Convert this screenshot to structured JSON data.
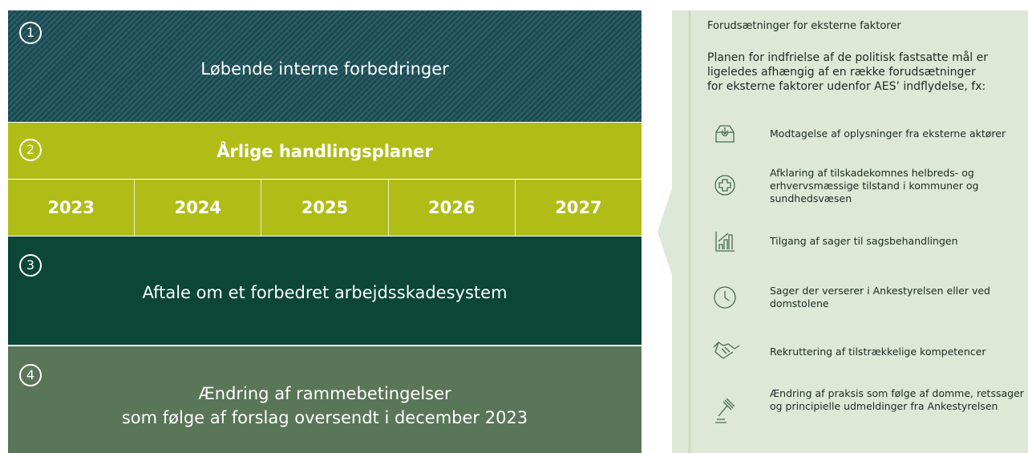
{
  "bands": [
    {
      "number": "1",
      "title": [
        "Løbende interne forbedringer"
      ]
    },
    {
      "number": "2",
      "title": [
        "Årlige handlingsplaner"
      ]
    },
    {
      "number": "3",
      "title": [
        "Aftale om et forbedret arbejdsskadesystem"
      ]
    },
    {
      "number": "4",
      "title": [
        "Ændring af rammebetingelser",
        "som følge af forslag oversendt i december 2023"
      ]
    }
  ],
  "years": [
    "2023",
    "2024",
    "2025",
    "2026",
    "2027"
  ],
  "side": {
    "title": "Forudsætninger for eksterne faktorer",
    "intro": "Planen for indfrielse af de politisk fastsatte mål er ligeledes afhængig af en række forudsætninger for eksterne faktorer udenfor AES’ indflydelse, fx:",
    "items": [
      "Modtagelse af oplysninger fra eksterne aktører",
      "Afklaring af tilskadekomnes helbreds- og erhvervsmæssige tilstand i kommuner og sundhedsvæsen",
      "Tilgang af sager til sagsbehandlingen",
      "Sager der verserer i Ankestyrelsen eller ved domstolene",
      "Rekruttering af tilstrækkelige kompetencer",
      "Ændring af praksis som følge af domme, retssager og principielle udmeldinger fra Ankestyrelsen"
    ]
  }
}
